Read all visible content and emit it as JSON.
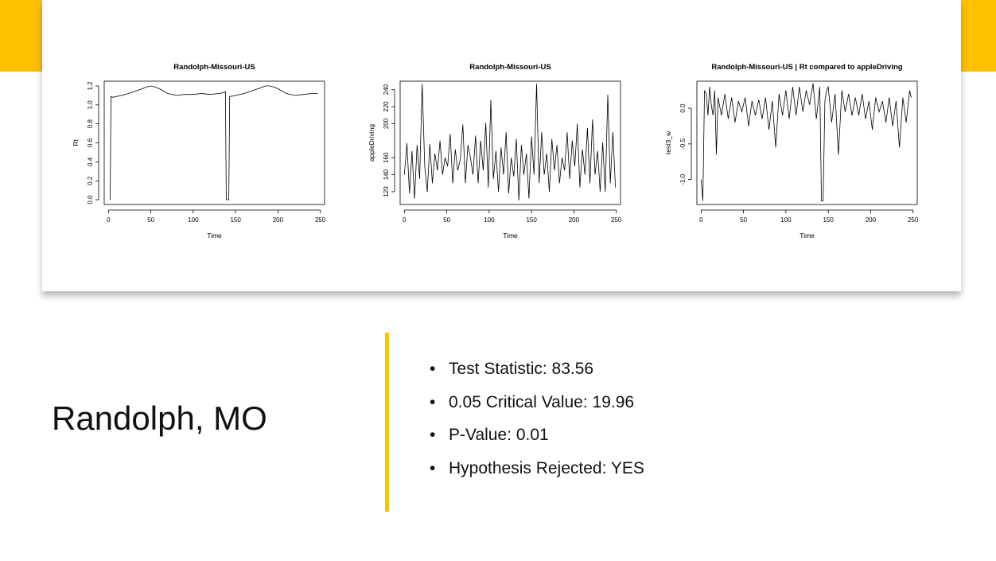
{
  "slide": {
    "place_title": "Randolph, MO",
    "stats": [
      "Test Statistic: 83.56",
      "0.05 Critical Value: 19.96",
      "P-Value: 0.01",
      "Hypothesis Rejected: YES"
    ],
    "accent_color": "#FFC000"
  },
  "chart_data": [
    {
      "type": "line",
      "title": "Randolph-Missouri-US",
      "xlabel": "Time",
      "ylabel": "Rt",
      "xlim": [
        -5,
        255
      ],
      "ylim": [
        -0.05,
        1.25
      ],
      "xticks": [
        0,
        50,
        100,
        150,
        200,
        250
      ],
      "yticks": [
        0.0,
        0.2,
        0.4,
        0.6,
        0.8,
        1.0,
        1.2
      ],
      "x": [
        2,
        3,
        5,
        10,
        20,
        30,
        40,
        45,
        50,
        55,
        60,
        70,
        80,
        90,
        100,
        110,
        120,
        130,
        137,
        138,
        139,
        140,
        141,
        142,
        143,
        145,
        150,
        160,
        170,
        180,
        185,
        190,
        195,
        200,
        210,
        220,
        230,
        240,
        245,
        247
      ],
      "y": [
        0.0,
        1.09,
        1.08,
        1.09,
        1.11,
        1.14,
        1.17,
        1.19,
        1.2,
        1.19,
        1.17,
        1.12,
        1.1,
        1.11,
        1.11,
        1.12,
        1.11,
        1.12,
        1.13,
        1.14,
        0.0,
        0.0,
        0.0,
        0.0,
        1.09,
        1.09,
        1.1,
        1.12,
        1.15,
        1.18,
        1.2,
        1.2,
        1.19,
        1.17,
        1.12,
        1.1,
        1.11,
        1.12,
        1.12,
        1.12
      ]
    },
    {
      "type": "line",
      "title": "Randolph-Missouri-US",
      "xlabel": "Time",
      "ylabel": "appleDriving",
      "xlim": [
        -5,
        255
      ],
      "ylim": [
        105,
        250
      ],
      "xticks": [
        0,
        50,
        100,
        150,
        200,
        250
      ],
      "yticks": [
        120,
        140,
        160,
        200,
        220,
        240
      ],
      "x": [
        0,
        3,
        6,
        9,
        12,
        15,
        18,
        21,
        24,
        27,
        30,
        33,
        36,
        39,
        42,
        45,
        48,
        51,
        54,
        57,
        60,
        63,
        66,
        69,
        72,
        75,
        78,
        81,
        84,
        87,
        90,
        93,
        96,
        99,
        102,
        105,
        108,
        111,
        114,
        117,
        120,
        123,
        126,
        129,
        132,
        135,
        138,
        141,
        144,
        147,
        150,
        153,
        156,
        159,
        162,
        165,
        168,
        171,
        174,
        177,
        180,
        183,
        186,
        189,
        192,
        195,
        198,
        201,
        204,
        207,
        210,
        213,
        216,
        219,
        222,
        225,
        228,
        231,
        234,
        237,
        240,
        243,
        246,
        249
      ],
      "y": [
        140,
        177,
        118,
        168,
        112,
        175,
        135,
        247,
        150,
        120,
        176,
        130,
        165,
        145,
        180,
        140,
        160,
        150,
        188,
        130,
        170,
        145,
        158,
        199,
        130,
        175,
        160,
        140,
        186,
        130,
        180,
        145,
        201,
        125,
        228,
        135,
        168,
        120,
        172,
        140,
        190,
        118,
        160,
        138,
        182,
        110,
        175,
        140,
        165,
        112,
        185,
        140,
        247,
        130,
        190,
        140,
        165,
        120,
        182,
        145,
        175,
        130,
        160,
        145,
        190,
        135,
        180,
        150,
        200,
        125,
        170,
        140,
        195,
        130,
        205,
        140,
        168,
        120,
        178,
        120,
        234,
        130,
        190,
        125
      ]
    },
    {
      "type": "line",
      "title": "Randolph-Missouri-US | Rt compared to appleDriving",
      "xlabel": "Time",
      "ylabel": "test3_w",
      "xlim": [
        -5,
        255
      ],
      "ylim": [
        -1.35,
        0.38
      ],
      "xticks": [
        0,
        50,
        100,
        150,
        200,
        250
      ],
      "yticks": [
        -1.0,
        -0.5,
        0.0
      ],
      "x": [
        0,
        2,
        4,
        6,
        8,
        10,
        12,
        14,
        16,
        18,
        20,
        24,
        28,
        32,
        36,
        40,
        44,
        48,
        52,
        56,
        60,
        64,
        68,
        72,
        76,
        80,
        84,
        88,
        92,
        96,
        100,
        104,
        108,
        112,
        116,
        120,
        124,
        128,
        132,
        136,
        140,
        142,
        144,
        146,
        148,
        150,
        154,
        158,
        162,
        166,
        170,
        174,
        178,
        182,
        186,
        190,
        194,
        198,
        202,
        206,
        210,
        214,
        218,
        222,
        226,
        230,
        234,
        238,
        242,
        246,
        248
      ],
      "y": [
        -1.0,
        -1.3,
        0.25,
        0.2,
        -0.1,
        0.3,
        0.05,
        -0.1,
        0.25,
        -0.65,
        0.15,
        -0.1,
        0.2,
        -0.15,
        0.15,
        -0.2,
        0.1,
        -0.05,
        0.15,
        -0.25,
        0.1,
        -0.1,
        0.12,
        -0.15,
        0.15,
        -0.3,
        0.1,
        -0.55,
        0.2,
        -0.1,
        0.25,
        -0.15,
        0.3,
        -0.1,
        0.3,
        -0.05,
        0.25,
        0.05,
        0.35,
        -0.15,
        0.3,
        -1.3,
        -1.3,
        0.1,
        0.25,
        0.3,
        -0.2,
        0.2,
        -0.65,
        0.25,
        -0.05,
        0.2,
        -0.1,
        0.15,
        -0.1,
        0.2,
        -0.15,
        0.1,
        -0.3,
        0.15,
        -0.05,
        0.1,
        -0.2,
        0.15,
        -0.25,
        0.1,
        -0.55,
        0.15,
        -0.2,
        0.25,
        0.15
      ]
    }
  ]
}
